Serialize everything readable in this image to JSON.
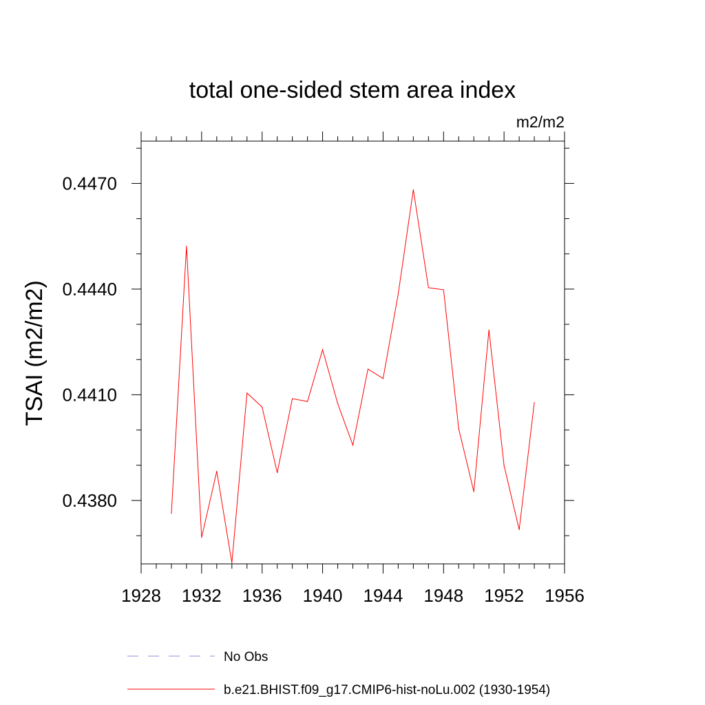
{
  "chart_data": {
    "type": "line",
    "title": "total one-sided stem area index",
    "units": "m2/m2",
    "ylabel": "TSAI  (m2/m2)",
    "xlabel": "",
    "xlim": [
      1928,
      1956
    ],
    "ylim": [
      0.4362,
      0.4482
    ],
    "x_ticks": [
      1928,
      1932,
      1936,
      1940,
      1944,
      1948,
      1952,
      1956
    ],
    "x_tick_labels": [
      "1928",
      "1932",
      "1936",
      "1940",
      "1944",
      "1948",
      "1952",
      "1956"
    ],
    "y_ticks": [
      0.438,
      0.441,
      0.444,
      0.447
    ],
    "y_tick_labels": [
      "0.4380",
      "0.4410",
      "0.4440",
      "0.4470"
    ],
    "grid": false,
    "legend_placement": "bottom",
    "series": [
      {
        "name": "b.e21.BHIST.f09_g17.CMIP6-hist-noLu.002 (1930-1954)",
        "color": "#ff0000",
        "style": "solid",
        "x": [
          1930,
          1931,
          1932,
          1933,
          1934,
          1935,
          1936,
          1937,
          1938,
          1939,
          1940,
          1941,
          1942,
          1943,
          1944,
          1945,
          1946,
          1947,
          1948,
          1949,
          1950,
          1951,
          1952,
          1953,
          1954
        ],
        "values": [
          0.43763,
          0.44522,
          0.43695,
          0.43883,
          0.43623,
          0.44105,
          0.44065,
          0.43879,
          0.44089,
          0.44081,
          0.44228,
          0.44075,
          0.43957,
          0.44173,
          0.44146,
          0.44386,
          0.44682,
          0.44404,
          0.44398,
          0.44004,
          0.43825,
          0.44284,
          0.43899,
          0.43717,
          0.44078
        ]
      },
      {
        "name": "No Obs",
        "color": "#8c8cd8",
        "style": "dashed",
        "x": [],
        "values": []
      }
    ]
  }
}
